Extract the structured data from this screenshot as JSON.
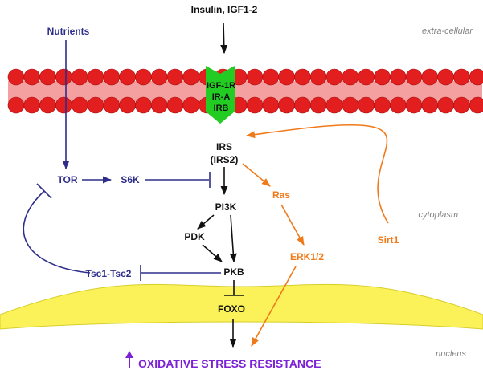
{
  "colors": {
    "black": "#111111",
    "navy": "#2e2e8a",
    "orange": "#f07a1a",
    "purple": "#7b22d6",
    "green": "#22cc22",
    "membrane_red": "#e31e1e",
    "membrane_pink": "#f4a0a0",
    "nucleus_yellow": "#fbf25a"
  },
  "labels": {
    "insulin": "Insulin, IGF1-2",
    "nutrients": "Nutrients",
    "receptor": [
      "IGF-1R",
      "IR-A",
      "IRB"
    ],
    "irs": "IRS",
    "irs2": "(IRS2)",
    "tor": "TOR",
    "s6k": "S6K",
    "ras": "Ras",
    "pi3k": "PI3K",
    "pdk": "PDK",
    "pkb": "PKB",
    "erk": "ERK1/2",
    "sirt1": "Sirt1",
    "tsc": "Tsc1-Tsc2",
    "foxo": "FOXO",
    "outcome": "OXIDATIVE STRESS RESISTANCE"
  },
  "regions": {
    "extracellular": "extra-cellular",
    "cytoplasm": "cytoplasm",
    "nucleus": "nucleus"
  }
}
